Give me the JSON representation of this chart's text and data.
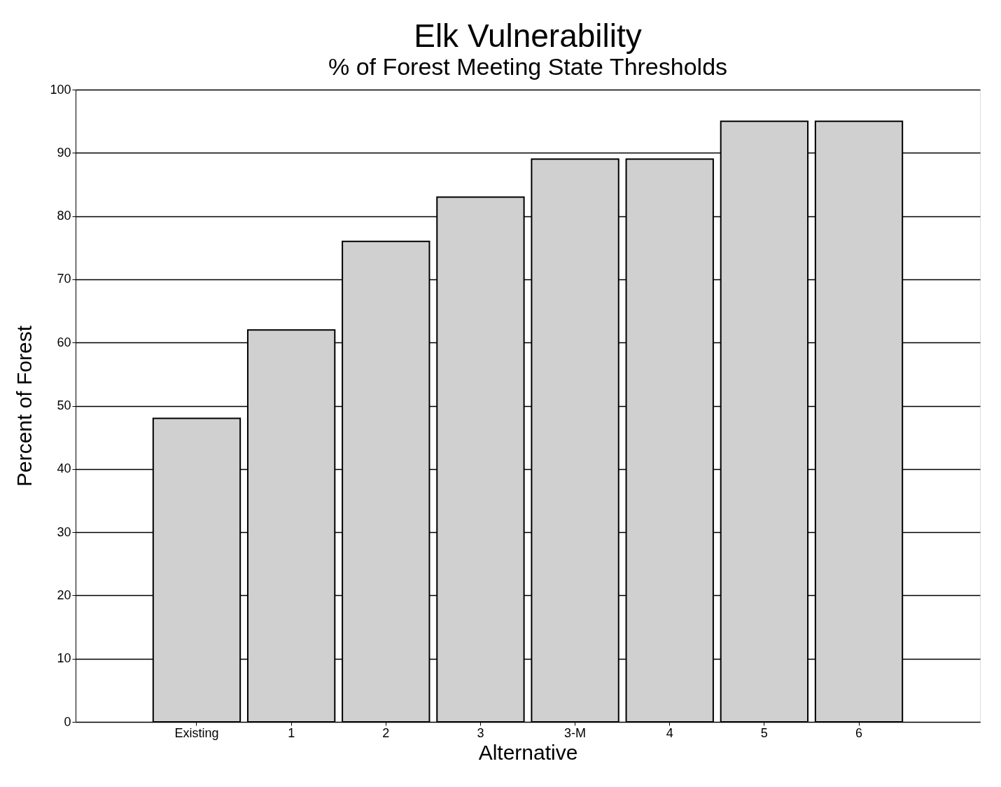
{
  "chart_data": {
    "type": "bar",
    "title": "Elk Vulnerability",
    "subtitle": "% of Forest Meeting State Thresholds",
    "xlabel": "Alternative",
    "ylabel": "Percent of Forest",
    "categories": [
      "Existing",
      "1",
      "2",
      "3",
      "3-M",
      "4",
      "5",
      "6"
    ],
    "values": [
      48,
      62,
      76,
      83,
      89,
      89,
      95,
      95
    ],
    "color": "#d0d0d0",
    "ylim": [
      0,
      100
    ],
    "yticks": [
      0,
      10,
      20,
      30,
      40,
      50,
      60,
      70,
      80,
      90,
      100
    ],
    "grid": "y"
  }
}
